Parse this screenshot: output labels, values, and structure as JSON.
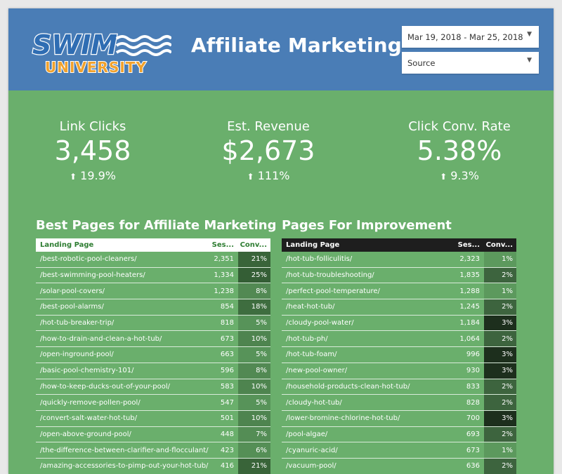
{
  "header": {
    "logo_word": "SWIM",
    "logo_sub": "UNIVERSITY",
    "title": "Affiliate Marketing",
    "date_range": "Mar 19, 2018 - Mar 25, 2018",
    "source_filter": "Source"
  },
  "kpis": [
    {
      "label": "Link Clicks",
      "value": "3,458",
      "change": "19.9%"
    },
    {
      "label": "Est. Revenue",
      "value": "$2,673",
      "change": "111%"
    },
    {
      "label": "Click Conv. Rate",
      "value": "5.38%",
      "change": "9.3%"
    }
  ],
  "best_pages": {
    "title": "Best Pages for Affiliate Marketing",
    "columns": [
      "Landing Page",
      "Ses...",
      "Conv..."
    ],
    "rows": [
      [
        "/best-robotic-pool-cleaners/",
        "2,351",
        "21%"
      ],
      [
        "/best-swimming-pool-heaters/",
        "1,334",
        "25%"
      ],
      [
        "/solar-pool-covers/",
        "1,238",
        "8%"
      ],
      [
        "/best-pool-alarms/",
        "854",
        "18%"
      ],
      [
        "/hot-tub-breaker-trip/",
        "818",
        "5%"
      ],
      [
        "/how-to-drain-and-clean-a-hot-tub/",
        "673",
        "10%"
      ],
      [
        "/open-inground-pool/",
        "663",
        "5%"
      ],
      [
        "/basic-pool-chemistry-101/",
        "596",
        "8%"
      ],
      [
        "/how-to-keep-ducks-out-of-your-pool/",
        "583",
        "10%"
      ],
      [
        "/quickly-remove-pollen-pool/",
        "547",
        "5%"
      ],
      [
        "/convert-salt-water-hot-tub/",
        "501",
        "10%"
      ],
      [
        "/open-above-ground-pool/",
        "448",
        "7%"
      ],
      [
        "/the-difference-between-clarifier-and-flocculant/",
        "423",
        "6%"
      ],
      [
        "/amazing-accessories-to-pimp-out-your-hot-tub/",
        "416",
        "21%"
      ]
    ]
  },
  "improve_pages": {
    "title": "Pages For Improvement",
    "columns": [
      "Landing Page",
      "Ses...",
      "Conv..."
    ],
    "rows": [
      [
        "/hot-tub-folliculitis/",
        "2,323",
        "1%"
      ],
      [
        "/hot-tub-troubleshooting/",
        "1,835",
        "2%"
      ],
      [
        "/perfect-pool-temperature/",
        "1,288",
        "1%"
      ],
      [
        "/heat-hot-tub/",
        "1,245",
        "2%"
      ],
      [
        "/cloudy-pool-water/",
        "1,184",
        "3%"
      ],
      [
        "/hot-tub-ph/",
        "1,064",
        "2%"
      ],
      [
        "/hot-tub-foam/",
        "996",
        "3%"
      ],
      [
        "/new-pool-owner/",
        "930",
        "3%"
      ],
      [
        "/household-products-clean-hot-tub/",
        "833",
        "2%"
      ],
      [
        "/cloudy-hot-tub/",
        "828",
        "2%"
      ],
      [
        "/lower-bromine-chlorine-hot-tub/",
        "700",
        "3%"
      ],
      [
        "/pool-algae/",
        "693",
        "2%"
      ],
      [
        "/cyanuric-acid/",
        "673",
        "1%"
      ],
      [
        "/vacuum-pool/",
        "636",
        "2%"
      ]
    ]
  },
  "colors": {
    "header_bg": "#4a7db6",
    "body_bg": "#6aaf6c",
    "logo_blue": "#2f6db3",
    "logo_orange": "#f1a22d"
  }
}
